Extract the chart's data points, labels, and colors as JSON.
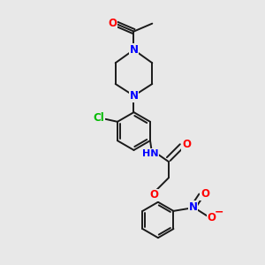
{
  "bg_color": "#e8e8e8",
  "bond_color": "#1a1a1a",
  "bond_width": 1.4,
  "atom_colors": {
    "O": "#ff0000",
    "N": "#0000ff",
    "Cl": "#00bb00",
    "H": "#808080"
  },
  "font_size_atom": 8.5,
  "xlim": [
    0,
    10
  ],
  "ylim": [
    0,
    10
  ]
}
